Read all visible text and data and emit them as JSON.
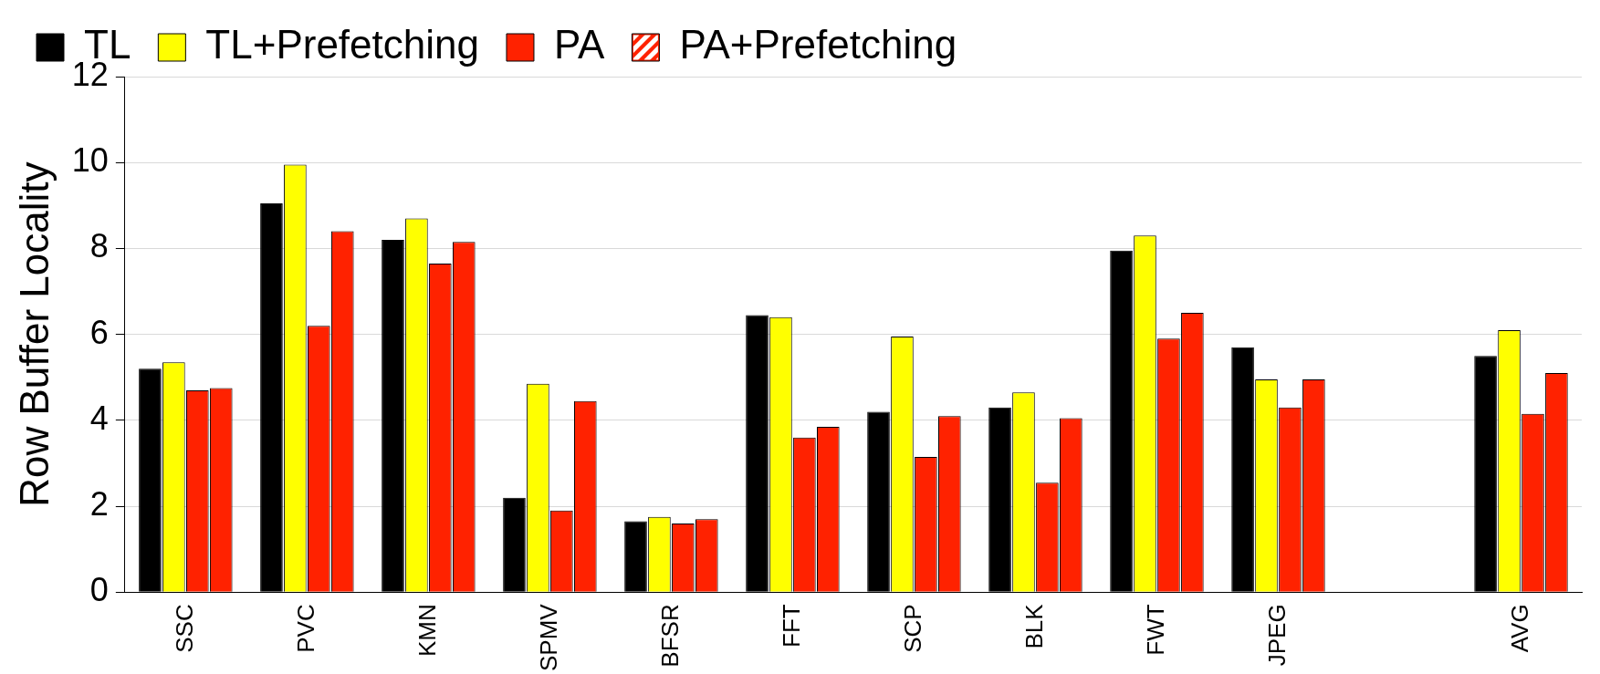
{
  "chart_data": {
    "type": "bar",
    "ylabel": "Row Buffer Locality",
    "categories": [
      "SSC",
      "PVC",
      "KMN",
      "SPMV",
      "BFSR",
      "FFT",
      "SCP",
      "BLK",
      "FWT",
      "JPEG",
      null,
      "AVG"
    ],
    "series": [
      {
        "name": "TL",
        "color": "#000000",
        "values": [
          5.2,
          9.05,
          8.2,
          2.2,
          1.65,
          6.45,
          4.2,
          4.3,
          7.95,
          5.7,
          null,
          5.5
        ]
      },
      {
        "name": "TL+Prefetching",
        "color": "#ffff00",
        "values": [
          5.35,
          9.95,
          8.7,
          4.85,
          1.75,
          6.4,
          5.95,
          4.65,
          8.3,
          4.95,
          null,
          6.1
        ]
      },
      {
        "name": "PA",
        "color": "#ff2200",
        "values": [
          4.7,
          6.2,
          7.65,
          1.9,
          1.6,
          3.6,
          3.15,
          2.55,
          5.9,
          4.3,
          null,
          4.15
        ]
      },
      {
        "name": "PA+Prefetching",
        "color": "#ff2200",
        "values": [
          4.75,
          8.4,
          8.15,
          4.45,
          1.7,
          3.85,
          4.1,
          4.05,
          6.5,
          4.95,
          null,
          5.1
        ]
      }
    ],
    "ylim": [
      0,
      12
    ],
    "yticks": [
      0,
      2,
      4,
      6,
      8,
      10,
      12
    ],
    "grid": "y",
    "legend": "top"
  }
}
